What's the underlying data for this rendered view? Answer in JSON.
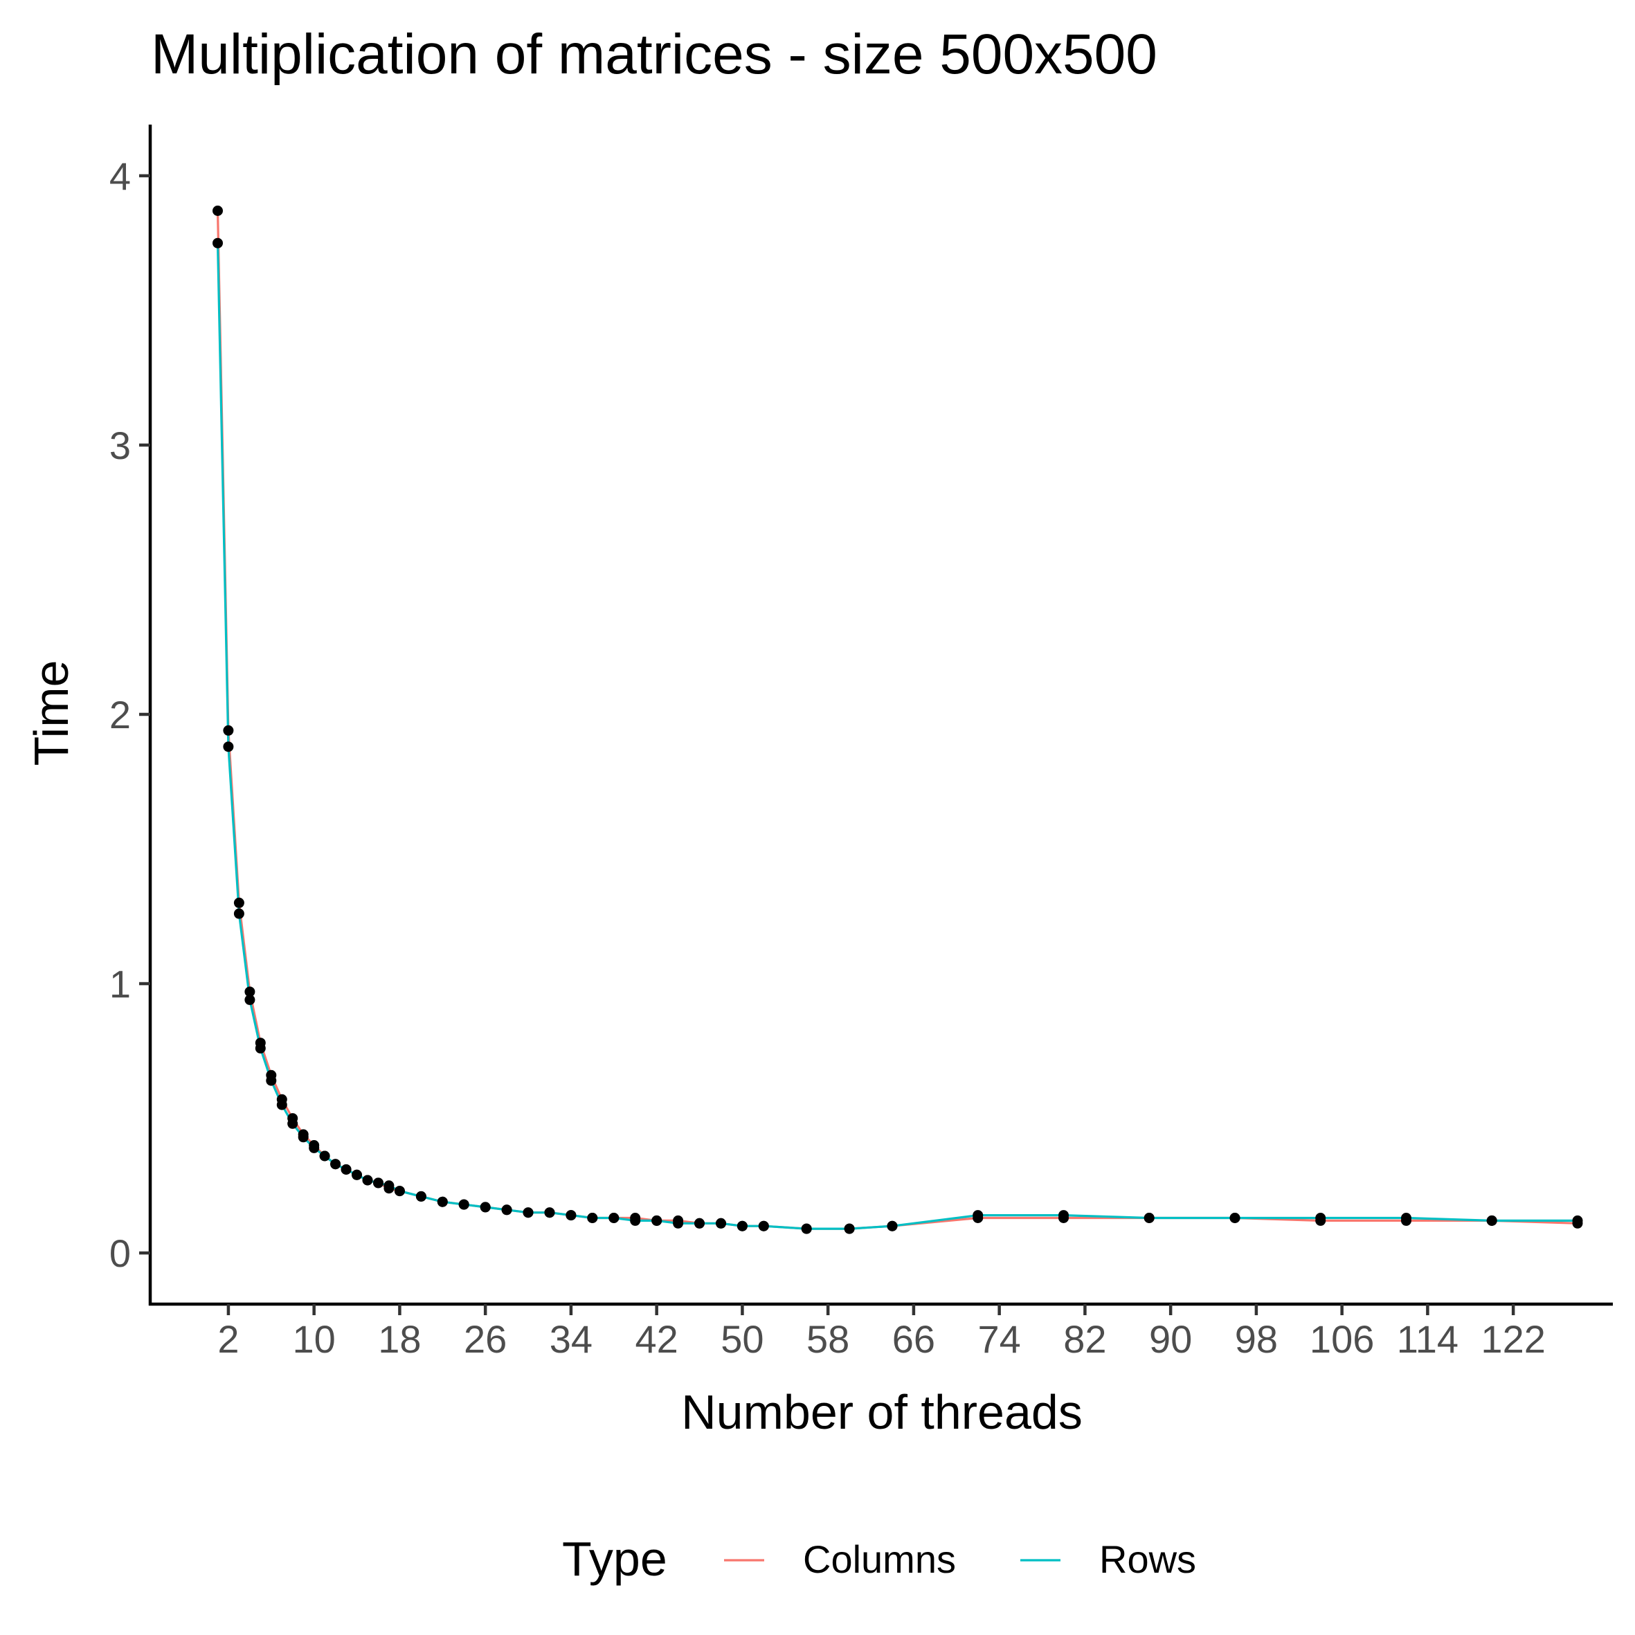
{
  "chart_data": {
    "type": "line",
    "title": "Multiplication of matrices - size 500x500",
    "xlabel": "Number of threads",
    "ylabel": "Time",
    "x_ticks": [
      2,
      10,
      18,
      26,
      34,
      42,
      50,
      58,
      66,
      74,
      82,
      90,
      98,
      106,
      114,
      122
    ],
    "y_ticks": [
      0,
      1,
      2,
      3,
      4
    ],
    "xlim": [
      -5.3,
      131.3
    ],
    "ylim": [
      -0.19,
      4.19
    ],
    "grid": false,
    "legend": {
      "title": "Type",
      "position": "bottom",
      "entries": [
        {
          "name": "Columns",
          "color": "#F8766D"
        },
        {
          "name": "Rows",
          "color": "#00BFC4"
        }
      ]
    },
    "x": [
      1,
      2,
      3,
      4,
      5,
      6,
      7,
      8,
      9,
      10,
      11,
      12,
      13,
      14,
      15,
      16,
      17,
      18,
      20,
      22,
      24,
      26,
      28,
      30,
      32,
      34,
      36,
      38,
      40,
      42,
      44,
      46,
      48,
      50,
      52,
      56,
      60,
      64,
      72,
      80,
      88,
      96,
      104,
      112,
      120,
      128
    ],
    "series": [
      {
        "name": "Columns",
        "color": "#F8766D",
        "values": [
          3.87,
          1.94,
          1.3,
          0.97,
          0.78,
          0.66,
          0.57,
          0.5,
          0.44,
          0.4,
          0.36,
          0.33,
          0.31,
          0.29,
          0.27,
          0.26,
          0.24,
          0.23,
          0.21,
          0.19,
          0.18,
          0.17,
          0.16,
          0.15,
          0.15,
          0.14,
          0.13,
          0.13,
          0.13,
          0.12,
          0.12,
          0.11,
          0.11,
          0.1,
          0.1,
          0.09,
          0.09,
          0.1,
          0.13,
          0.13,
          0.13,
          0.13,
          0.12,
          0.12,
          0.12,
          0.11
        ]
      },
      {
        "name": "Rows",
        "color": "#00BFC4",
        "values": [
          3.75,
          1.88,
          1.26,
          0.94,
          0.76,
          0.64,
          0.55,
          0.48,
          0.43,
          0.39,
          0.36,
          0.33,
          0.31,
          0.29,
          0.27,
          0.26,
          0.25,
          0.23,
          0.21,
          0.19,
          0.18,
          0.17,
          0.16,
          0.15,
          0.15,
          0.14,
          0.13,
          0.13,
          0.12,
          0.12,
          0.11,
          0.11,
          0.11,
          0.1,
          0.1,
          0.09,
          0.09,
          0.1,
          0.14,
          0.14,
          0.13,
          0.13,
          0.13,
          0.13,
          0.12,
          0.12
        ]
      }
    ]
  }
}
